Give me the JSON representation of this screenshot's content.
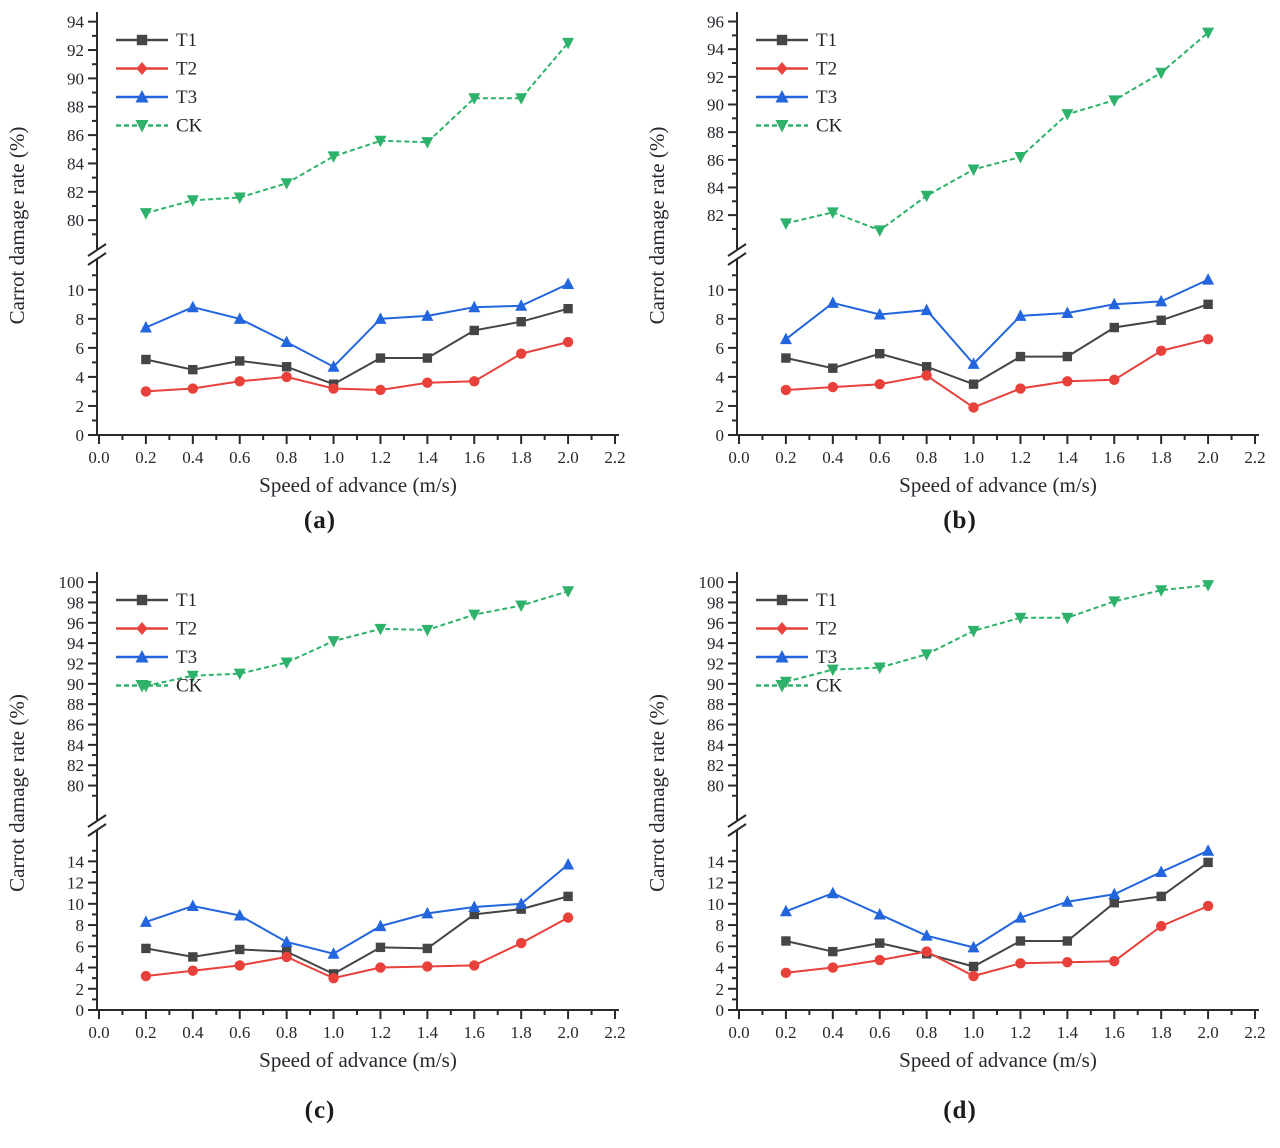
{
  "figure": {
    "xlabel": "Speed of advance (m/s)",
    "ylabel": "Carrot damage rate (%)"
  },
  "chart_data": [
    {
      "id": "a",
      "caption": "(a)",
      "type": "line",
      "xlabel": "Speed of advance (m/s)",
      "ylabel": "Carrot damage rate (%)",
      "x": [
        0.2,
        0.4,
        0.6,
        0.8,
        1.0,
        1.2,
        1.4,
        1.6,
        1.8,
        2.0
      ],
      "x_ticks": [
        "0.0",
        "0.2",
        "0.4",
        "0.6",
        "0.8",
        "1.0",
        "1.2",
        "1.4",
        "1.6",
        "1.8",
        "2.0",
        "2.2"
      ],
      "x_range": [
        0.0,
        2.2
      ],
      "y_axis_break": true,
      "upper": {
        "min": 78.6,
        "max": 94.4,
        "ticks": [
          80,
          82,
          84,
          86,
          88,
          90,
          92,
          94
        ]
      },
      "lower": {
        "min": 0,
        "max": 11.5,
        "ticks": [
          0,
          2,
          4,
          6,
          8,
          10
        ]
      },
      "legend_position": "top-left",
      "grid": false,
      "series": [
        {
          "name": "T1",
          "color": "#454545",
          "marker": "square",
          "line": "solid",
          "values": [
            5.2,
            4.5,
            5.1,
            4.7,
            3.5,
            5.3,
            5.3,
            7.2,
            7.8,
            8.7
          ]
        },
        {
          "name": "T2",
          "color": "#e8403a",
          "marker": "circle",
          "legend_marker": "diamond",
          "line": "solid",
          "values": [
            3.0,
            3.2,
            3.7,
            4.0,
            3.2,
            3.1,
            3.6,
            3.7,
            5.6,
            6.4
          ]
        },
        {
          "name": "T3",
          "color": "#2365dd",
          "marker": "triangle-up",
          "line": "solid",
          "values": [
            7.4,
            8.8,
            8.0,
            6.4,
            4.7,
            8.0,
            8.2,
            8.8,
            8.9,
            10.4
          ]
        },
        {
          "name": "CK",
          "color": "#2eb26b",
          "marker": "triangle-down",
          "line": "dashed",
          "values": [
            80.5,
            81.4,
            81.6,
            82.6,
            84.5,
            85.6,
            85.5,
            88.6,
            88.6,
            92.5
          ]
        }
      ]
    },
    {
      "id": "b",
      "caption": "(b)",
      "type": "line",
      "xlabel": "Speed of advance (m/s)",
      "ylabel": "Carrot damage rate (%)",
      "x": [
        0.2,
        0.4,
        0.6,
        0.8,
        1.0,
        1.2,
        1.4,
        1.6,
        1.8,
        2.0
      ],
      "x_ticks": [
        "0.0",
        "0.2",
        "0.4",
        "0.6",
        "0.8",
        "1.0",
        "1.2",
        "1.4",
        "1.6",
        "1.8",
        "2.0",
        "2.2"
      ],
      "x_range": [
        0.0,
        2.2
      ],
      "y_axis_break": true,
      "upper": {
        "min": 80.2,
        "max": 96.4,
        "ticks": [
          82,
          84,
          86,
          88,
          90,
          92,
          94,
          96
        ]
      },
      "lower": {
        "min": 0,
        "max": 11.5,
        "ticks": [
          0,
          2,
          4,
          6,
          8,
          10
        ]
      },
      "legend_position": "top-left",
      "grid": false,
      "series": [
        {
          "name": "T1",
          "color": "#454545",
          "marker": "square",
          "line": "solid",
          "values": [
            5.3,
            4.6,
            5.6,
            4.7,
            3.5,
            5.4,
            5.4,
            7.4,
            7.9,
            9.0
          ]
        },
        {
          "name": "T2",
          "color": "#e8403a",
          "marker": "circle",
          "legend_marker": "diamond",
          "line": "solid",
          "values": [
            3.1,
            3.3,
            3.5,
            4.1,
            1.9,
            3.2,
            3.7,
            3.8,
            5.8,
            6.6
          ]
        },
        {
          "name": "T3",
          "color": "#2365dd",
          "marker": "triangle-up",
          "line": "solid",
          "values": [
            6.6,
            9.1,
            8.3,
            8.6,
            4.9,
            8.2,
            8.4,
            9.0,
            9.2,
            10.7
          ]
        },
        {
          "name": "CK",
          "color": "#2eb26b",
          "marker": "triangle-down",
          "line": "dashed",
          "values": [
            81.4,
            82.2,
            80.9,
            83.4,
            85.3,
            86.2,
            89.3,
            90.3,
            92.3,
            95.2
          ]
        }
      ]
    },
    {
      "id": "c",
      "caption": "(c)",
      "type": "line",
      "xlabel": "Speed of advance (m/s)",
      "ylabel": "Carrot damage rate (%)",
      "x": [
        0.2,
        0.4,
        0.6,
        0.8,
        1.0,
        1.2,
        1.4,
        1.6,
        1.8,
        2.0
      ],
      "x_ticks": [
        "0.0",
        "0.2",
        "0.4",
        "0.6",
        "0.8",
        "1.0",
        "1.2",
        "1.4",
        "1.6",
        "1.8",
        "2.0",
        "2.2"
      ],
      "x_range": [
        0.0,
        2.2
      ],
      "y_axis_break": true,
      "upper": {
        "min": 77.4,
        "max": 100.6,
        "ticks": [
          80,
          82,
          84,
          86,
          88,
          90,
          92,
          94,
          96,
          98,
          100
        ]
      },
      "lower": {
        "min": 0,
        "max": 16.2,
        "ticks": [
          0,
          2,
          4,
          6,
          8,
          10,
          12,
          14
        ]
      },
      "legend_position": "top-left",
      "grid": false,
      "series": [
        {
          "name": "T1",
          "color": "#454545",
          "marker": "square",
          "line": "solid",
          "values": [
            5.8,
            5.0,
            5.7,
            5.5,
            3.4,
            5.9,
            5.8,
            9.0,
            9.5,
            10.7
          ]
        },
        {
          "name": "T2",
          "color": "#e8403a",
          "marker": "circle",
          "legend_marker": "diamond",
          "line": "solid",
          "values": [
            3.2,
            3.7,
            4.2,
            5.0,
            3.0,
            4.0,
            4.1,
            4.2,
            6.3,
            8.7
          ]
        },
        {
          "name": "T3",
          "color": "#2365dd",
          "marker": "triangle-up",
          "line": "solid",
          "values": [
            8.3,
            9.8,
            8.9,
            6.4,
            5.3,
            7.9,
            9.1,
            9.7,
            10.0,
            13.7
          ]
        },
        {
          "name": "CK",
          "color": "#2eb26b",
          "marker": "triangle-down",
          "line": "dashed",
          "values": [
            89.8,
            90.8,
            91.0,
            92.1,
            94.2,
            95.4,
            95.3,
            96.8,
            97.7,
            99.1
          ]
        }
      ]
    },
    {
      "id": "d",
      "caption": "(d)",
      "type": "line",
      "xlabel": "Speed of advance (m/s)",
      "ylabel": "Carrot damage rate (%)",
      "x": [
        0.2,
        0.4,
        0.6,
        0.8,
        1.0,
        1.2,
        1.4,
        1.6,
        1.8,
        2.0
      ],
      "x_ticks": [
        "0.0",
        "0.2",
        "0.4",
        "0.6",
        "0.8",
        "1.0",
        "1.2",
        "1.4",
        "1.6",
        "1.8",
        "2.0",
        "2.2"
      ],
      "x_range": [
        0.0,
        2.2
      ],
      "y_axis_break": true,
      "upper": {
        "min": 77.4,
        "max": 100.6,
        "ticks": [
          80,
          82,
          84,
          86,
          88,
          90,
          92,
          94,
          96,
          98,
          100
        ]
      },
      "lower": {
        "min": 0,
        "max": 16.2,
        "ticks": [
          0,
          2,
          4,
          6,
          8,
          10,
          12,
          14
        ]
      },
      "legend_position": "top-left",
      "grid": false,
      "series": [
        {
          "name": "T1",
          "color": "#454545",
          "marker": "square",
          "line": "solid",
          "values": [
            6.5,
            5.5,
            6.3,
            5.3,
            4.1,
            6.5,
            6.5,
            10.1,
            10.7,
            13.9
          ]
        },
        {
          "name": "T2",
          "color": "#e8403a",
          "marker": "circle",
          "legend_marker": "diamond",
          "line": "solid",
          "values": [
            3.5,
            4.0,
            4.7,
            5.5,
            3.2,
            4.4,
            4.5,
            4.6,
            7.9,
            9.8
          ]
        },
        {
          "name": "T3",
          "color": "#2365dd",
          "marker": "triangle-up",
          "line": "solid",
          "values": [
            9.3,
            11.0,
            9.0,
            7.0,
            5.9,
            8.7,
            10.2,
            10.9,
            13.0,
            15.0
          ]
        },
        {
          "name": "CK",
          "color": "#2eb26b",
          "marker": "triangle-down",
          "line": "dashed",
          "values": [
            90.2,
            91.4,
            91.6,
            92.9,
            95.2,
            96.5,
            96.5,
            98.1,
            99.2,
            99.7
          ]
        }
      ]
    }
  ]
}
